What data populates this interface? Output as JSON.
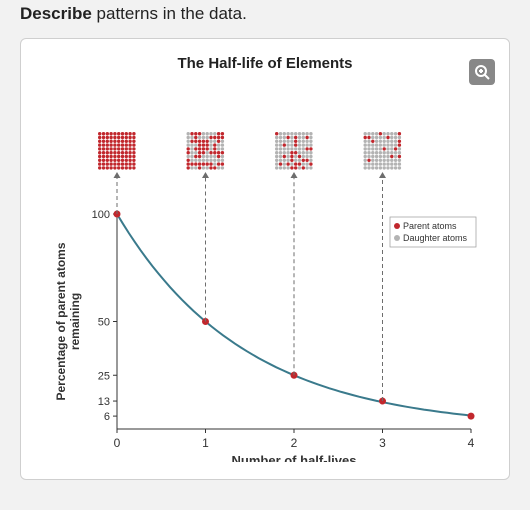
{
  "prompt": {
    "bold": "Describe",
    "rest": " patterns in the data."
  },
  "chart": {
    "title": "The Half-life of Elements",
    "ylabel": "Percentage of parent atoms remaining",
    "xlabel": "Number of half-lives",
    "colors": {
      "parent": "#c1272d",
      "daughter": "#b3b3b3",
      "line": "#3a7a8c",
      "axis": "#333",
      "dash": "#6d6d6d",
      "text": "#333",
      "bg": "#ffffff"
    },
    "legend": {
      "parent": "Parent atoms",
      "daughter": "Daughter atoms"
    },
    "yticks": [
      {
        "v": 100,
        "label": "100"
      },
      {
        "v": 50,
        "label": "50"
      },
      {
        "v": 25,
        "label": "25"
      },
      {
        "v": 13,
        "label": "13"
      },
      {
        "v": 6,
        "label": "6"
      }
    ],
    "xticks": [
      0,
      1,
      2,
      3,
      4
    ],
    "points": [
      {
        "x": 0,
        "y": 100
      },
      {
        "x": 1,
        "y": 50
      },
      {
        "x": 2,
        "y": 25
      },
      {
        "x": 3,
        "y": 13
      },
      {
        "x": 4,
        "y": 6
      }
    ],
    "grids": {
      "rows": 10,
      "cols": 10,
      "cell": 3.4,
      "gap": 0.4,
      "panels": [
        {
          "hl": 0,
          "parentFrac": 1.0
        },
        {
          "hl": 1,
          "parentFrac": 0.5
        },
        {
          "hl": 2,
          "parentFrac": 0.25
        },
        {
          "hl": 3,
          "parentFrac": 0.13
        }
      ]
    },
    "plot": {
      "ox": 72,
      "oy": 347,
      "wx": 354,
      "hy": 215,
      "xmax": 4,
      "ymax": 100,
      "gridY0": 50,
      "gridH": 42,
      "gridGap": 50
    }
  }
}
